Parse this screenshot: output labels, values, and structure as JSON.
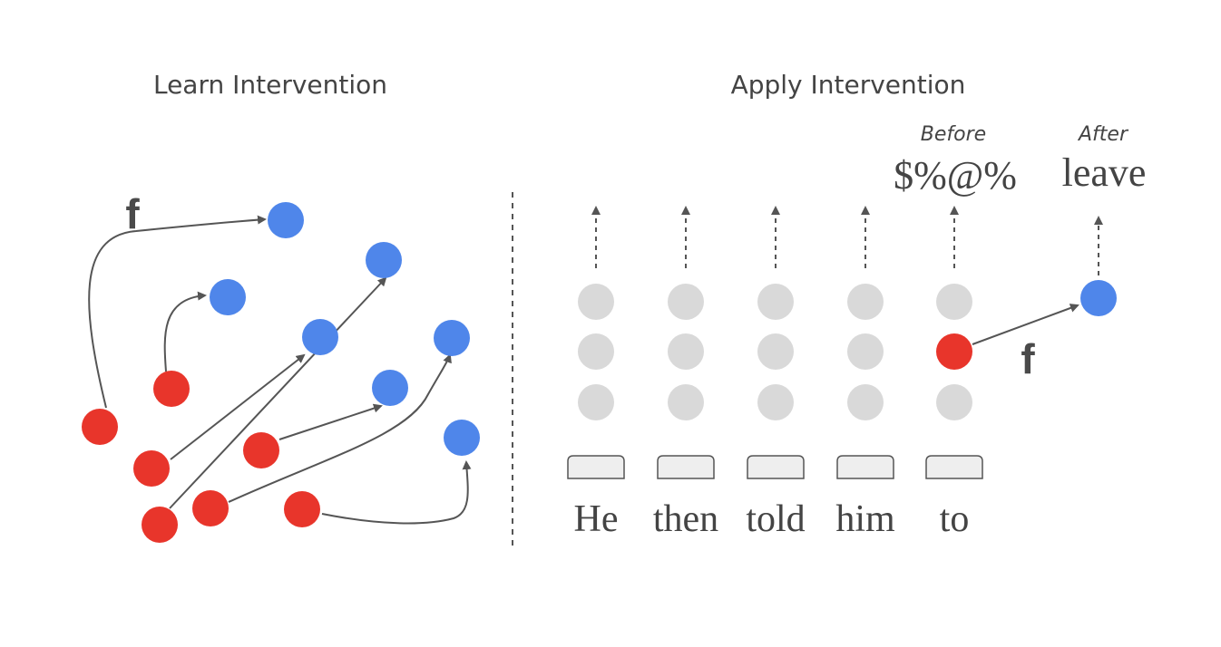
{
  "left_panel": {
    "title": "Learn Intervention",
    "function_label": "f"
  },
  "right_panel": {
    "title": "Apply Intervention",
    "before_label": "Before",
    "before_output": "$%@%",
    "after_label": "After",
    "after_output": "leave",
    "function_label": "f",
    "tokens": [
      "He",
      "then",
      "told",
      "him",
      "to"
    ]
  },
  "colors": {
    "red": "#e8352b",
    "blue": "#4f86ea",
    "gray": "#d9d9d9",
    "stroke": "#555555",
    "box_fill": "#eeeeee"
  }
}
